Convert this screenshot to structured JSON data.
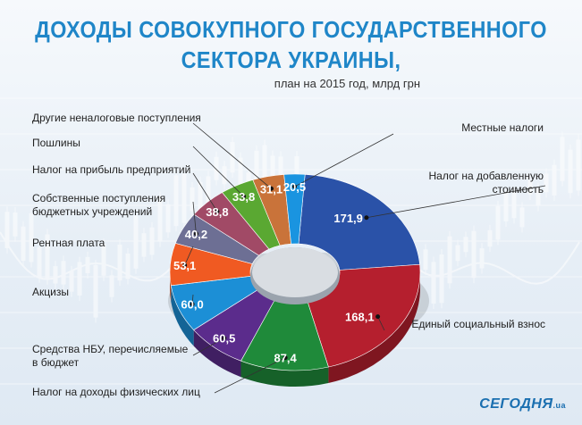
{
  "title": {
    "line1": "ДОХОДЫ СОВОКУПНОГО ГОСУДАРСТВЕННОГО",
    "line2": "СЕКТОРА УКРАИНЫ,",
    "subtitle": "план на 2015 год, млрд грн"
  },
  "logo": {
    "name": "СЕГОДНЯ",
    "suffix": ".ua"
  },
  "chart_data": {
    "type": "pie",
    "title": "ДОХОДЫ СОВОКУПНОГО ГОСУДАРСТВЕННОГО СЕКТОРА УКРАИНЫ,",
    "subtitle": "план на 2015 год, млрд грн",
    "unit": "млрд грн",
    "slices": [
      {
        "label": "Налог на добавленную стоимость",
        "value": 171.9,
        "value_label": "171,9",
        "color": "#2a52a8"
      },
      {
        "label": "Единый социальный взнос",
        "value": 168.1,
        "value_label": "168,1",
        "color": "#b51f2e"
      },
      {
        "label": "Налог на доходы физических лиц",
        "value": 87.4,
        "value_label": "87,4",
        "color": "#1f8a3a"
      },
      {
        "label": "Средства НБУ, перечисляемые в бюджет",
        "value": 60.5,
        "value_label": "60,5",
        "color": "#5b2c8c"
      },
      {
        "label": "Акцизы",
        "value": 60.0,
        "value_label": "60,0",
        "color": "#1c8fd6"
      },
      {
        "label": "Рентная плата",
        "value": 53.1,
        "value_label": "53,1",
        "color": "#f05a22"
      },
      {
        "label": "Собственные поступления бюджетных учреждений",
        "value": 40.2,
        "value_label": "40,2",
        "color": "#6d6f94"
      },
      {
        "label": "Налог на прибыль предприятий",
        "value": 38.8,
        "value_label": "38,8",
        "color": "#a14a66"
      },
      {
        "label": "Пошлины",
        "value": 33.8,
        "value_label": "33,8",
        "color": "#5aa832"
      },
      {
        "label": "Другие неналоговые поступления",
        "value": 31.1,
        "value_label": "31,1",
        "color": "#c9733a"
      },
      {
        "label": "Местные налоги",
        "value": 20.5,
        "value_label": "20,5",
        "color": "#1a94e0"
      }
    ]
  }
}
